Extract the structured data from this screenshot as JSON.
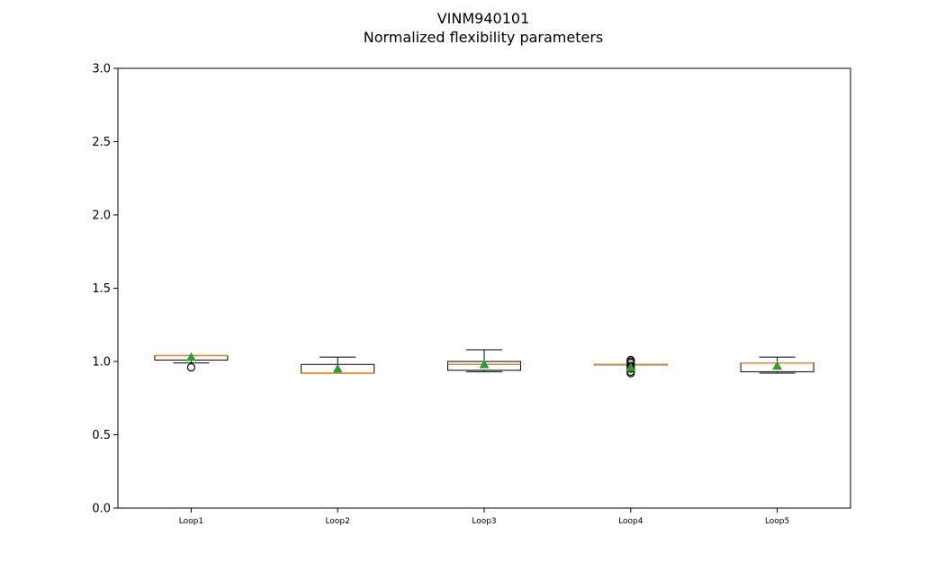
{
  "chart_data": {
    "type": "box",
    "title": "VINM940101",
    "subtitle": "Normalized flexibility parameters",
    "xlabel": "",
    "ylabel": "",
    "ylim": [
      0.0,
      3.0
    ],
    "yticks": [
      "0.0",
      "0.5",
      "1.0",
      "1.5",
      "2.0",
      "2.5",
      "3.0"
    ],
    "grid": false,
    "legend": "none",
    "colors": {
      "box": "#000000",
      "median": "#ff7f0e",
      "mean": "#2ca02c",
      "flier": "#000000"
    },
    "boxes": [
      {
        "label": "Loop1",
        "whislo": 0.99,
        "q1": 1.01,
        "med": 1.04,
        "q3": 1.04,
        "whishi": 1.04,
        "mean": 1.03,
        "fliers": [
          0.96
        ]
      },
      {
        "label": "Loop2",
        "whislo": 0.92,
        "q1": 0.92,
        "med": 0.92,
        "q3": 0.98,
        "whishi": 1.03,
        "mean": 0.95,
        "fliers": []
      },
      {
        "label": "Loop3",
        "whislo": 0.93,
        "q1": 0.94,
        "med": 0.98,
        "q3": 1.0,
        "whishi": 1.08,
        "mean": 0.98,
        "fliers": []
      },
      {
        "label": "Loop4",
        "whislo": 0.98,
        "q1": 0.98,
        "med": 0.98,
        "q3": 0.98,
        "whishi": 0.98,
        "mean": 0.96,
        "fliers": [
          0.92,
          0.93,
          0.95,
          0.96,
          0.97,
          0.99,
          1.0,
          1.01
        ]
      },
      {
        "label": "Loop5",
        "whislo": 0.92,
        "q1": 0.93,
        "med": 0.99,
        "q3": 0.99,
        "whishi": 1.03,
        "mean": 0.97,
        "fliers": []
      }
    ]
  }
}
